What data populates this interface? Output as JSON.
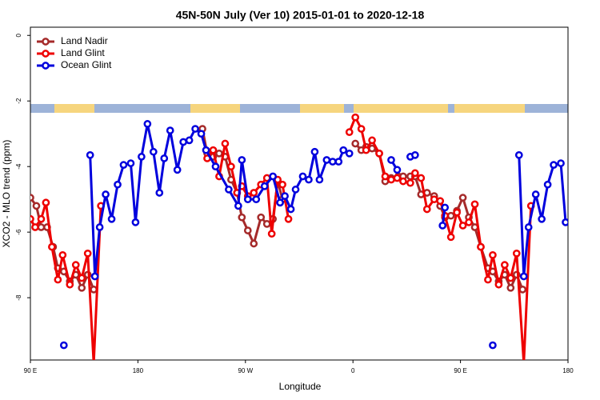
{
  "chart_data": {
    "type": "line",
    "title": "45N-50N July (Ver 10)   2015-01-01 to 2020-12-18",
    "x_label": "Longitude",
    "y_label": "XCO2 - MLO trend (ppm)",
    "xlim": [
      90,
      540
    ],
    "xticks": [
      {
        "value": 90,
        "label": "90 E"
      },
      {
        "value": 180,
        "label": "180"
      },
      {
        "value": 270,
        "label": "90 W"
      },
      {
        "value": 360,
        "label": "0"
      },
      {
        "value": 450,
        "label": "90 E"
      },
      {
        "value": 540,
        "label": "180"
      }
    ],
    "ylim": [
      -9.9,
      0.25
    ],
    "yticks": [
      0,
      -2,
      -4,
      -6,
      -8
    ],
    "legend": "top-left",
    "series": [
      {
        "name": "Land Nadir",
        "color": "#a52a2a",
        "x": [
          90,
          95,
          99,
          104,
          109,
          113,
          118,
          123,
          128,
          133,
          138,
          143,
          190,
          234,
          238,
          243,
          248,
          253,
          258,
          263,
          267,
          272,
          277,
          283,
          288,
          293,
          297,
          301,
          330,
          362,
          367,
          371,
          376,
          382,
          387,
          392,
          398,
          402,
          408,
          412,
          417,
          422,
          428,
          433,
          437,
          442,
          447,
          452,
          457,
          462,
          467,
          473,
          477,
          482,
          487,
          492,
          497,
          502
        ],
        "values": [
          -4.95,
          -5.2,
          -5.85,
          -5.85,
          -6.45,
          -7.1,
          -7.2,
          -7.5,
          -7.3,
          -7.7,
          -7.3,
          -7.75,
          null,
          -2.85,
          -3.6,
          -3.7,
          -3.6,
          -3.7,
          -4.4,
          -4.8,
          -5.55,
          -5.95,
          -6.35,
          -5.55,
          -5.75,
          -5.6,
          -4.45,
          -5.0,
          null,
          -3.3,
          -3.5,
          -3.4,
          -3.45,
          -3.6,
          -4.45,
          -4.35,
          -4.3,
          -4.3,
          -4.3,
          -4.3,
          -4.85,
          -4.8,
          -4.9,
          -5.2,
          -5.55,
          -5.5,
          -5.35,
          -4.95,
          -5.55,
          -5.85,
          -6.45,
          -7.1,
          -7.2,
          -7.5,
          -7.3,
          -7.7,
          -7.3,
          -7.75
        ]
      },
      {
        "name": "Land Glint",
        "color": "#ee0000",
        "x": [
          90,
          94,
          99,
          103,
          108,
          113,
          117,
          123,
          128,
          133,
          138,
          143,
          149,
          200,
          238,
          243,
          248,
          253,
          258,
          263,
          267,
          272,
          277,
          283,
          288,
          292,
          297,
          301,
          306,
          330,
          357,
          362,
          367,
          371,
          376,
          382,
          387,
          392,
          397,
          402,
          408,
          412,
          417,
          422,
          428,
          433,
          437,
          442,
          447,
          452,
          457,
          462,
          467,
          473,
          477,
          482,
          487,
          492,
          497,
          503,
          509
        ],
        "values": [
          -5.6,
          -5.85,
          -5.6,
          -5.1,
          -6.45,
          -7.45,
          -6.7,
          -7.6,
          -7.0,
          -7.4,
          -6.65,
          -10,
          -5.2,
          null,
          -3.75,
          -3.5,
          -4.3,
          -3.3,
          -4.0,
          -4.8,
          -4.6,
          -4.9,
          -4.8,
          -4.55,
          -4.35,
          -6.05,
          -4.4,
          -4.55,
          -5.6,
          null,
          -2.95,
          -2.5,
          -2.85,
          -3.5,
          -3.2,
          -3.6,
          -4.3,
          -4.4,
          -4.35,
          -4.45,
          -4.5,
          -4.2,
          -4.35,
          -5.3,
          -5.0,
          -5.05,
          -5.5,
          -6.15,
          -5.4,
          -5.8,
          -5.7,
          -5.15,
          -6.45,
          -7.45,
          -6.7,
          -7.6,
          -7.0,
          -7.4,
          -6.65,
          -10,
          -5.2
        ]
      },
      {
        "name": "Ocean Glint",
        "color": "#0000dd",
        "x": [
          118,
          128,
          140,
          144,
          148,
          153,
          158,
          163,
          168,
          174,
          178,
          183,
          188,
          193,
          198,
          202,
          207,
          213,
          218,
          223,
          228,
          233,
          237,
          245,
          256,
          264,
          267,
          272,
          279,
          286,
          293,
          299,
          303,
          308,
          312,
          318,
          323,
          328,
          332,
          338,
          343,
          348,
          352,
          357,
          375,
          392,
          397,
          402,
          408,
          412,
          423,
          435,
          437,
          460,
          477,
          490,
          499,
          503,
          507,
          513,
          518,
          523,
          528,
          534,
          538
        ],
        "values": [
          -9.45,
          null,
          -3.65,
          -7.35,
          -5.85,
          -4.85,
          -5.6,
          -4.55,
          -3.95,
          -3.9,
          -5.7,
          -3.7,
          -2.7,
          -3.55,
          -4.8,
          -3.75,
          -2.9,
          -4.1,
          -3.25,
          -3.2,
          -2.85,
          -3.0,
          -3.5,
          -4.0,
          -4.7,
          -5.2,
          -3.8,
          -5.0,
          -5.0,
          -4.6,
          -4.3,
          -5.1,
          -4.9,
          -5.3,
          -4.7,
          -4.3,
          -4.4,
          -3.55,
          -4.4,
          -3.8,
          -3.85,
          -3.85,
          -3.5,
          -3.6,
          null,
          -3.8,
          -4.1,
          null,
          -3.7,
          -3.65,
          null,
          -5.8,
          -5.25,
          null,
          -9.45,
          null,
          -3.65,
          -7.35,
          -5.85,
          -4.85,
          -5.6,
          -4.55,
          -3.95,
          -3.9,
          -5.7
        ]
      }
    ]
  }
}
